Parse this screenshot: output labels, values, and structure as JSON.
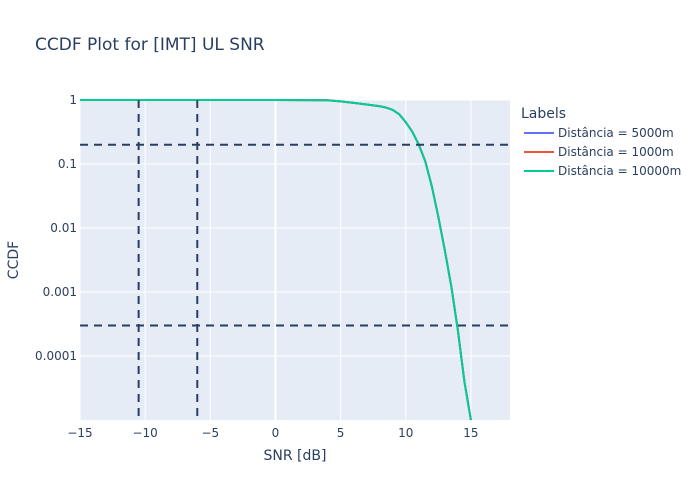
{
  "chart_data": {
    "type": "line",
    "title": "CCDF Plot for [IMT] UL SNR",
    "xlabel": "SNR [dB]",
    "ylabel": "CCDF",
    "xlim": [
      -15,
      18
    ],
    "ylim_log10": [
      -5,
      0
    ],
    "yscale": "log",
    "grid": true,
    "x_ticks": [
      -15,
      -10,
      -5,
      0,
      5,
      10,
      15
    ],
    "x_tick_labels": [
      "−15",
      "−10",
      "−5",
      "0",
      "5",
      "10",
      "15"
    ],
    "y_ticks": [
      1,
      0.1,
      0.01,
      0.001,
      0.0001
    ],
    "y_tick_labels": [
      "1",
      "0.1",
      "0.01",
      "0.001",
      "0.0001"
    ],
    "legend": {
      "title": "Labels",
      "position": "right"
    },
    "series": [
      {
        "name": "Distância = 5000m",
        "color": "#636efa",
        "x": [
          -15,
          -5,
          0,
          4,
          5,
          6,
          7,
          8,
          8.5,
          9,
          9.5,
          10,
          10.5,
          11,
          11.5,
          12,
          12.5,
          13,
          13.5,
          14,
          14.5,
          15
        ],
        "y": [
          1,
          1,
          0.999,
          0.99,
          0.95,
          0.9,
          0.85,
          0.8,
          0.76,
          0.7,
          0.6,
          0.45,
          0.32,
          0.2,
          0.11,
          0.045,
          0.015,
          0.0045,
          0.0012,
          0.00025,
          4e-05,
          1e-05
        ]
      },
      {
        "name": "Distância = 1000m",
        "color": "#ef553b",
        "x": [
          -15,
          -5,
          0,
          4,
          5,
          6,
          7,
          8,
          8.5,
          9,
          9.5,
          10,
          10.5,
          11,
          11.5,
          12,
          12.5,
          13,
          13.5,
          14,
          14.5,
          15
        ],
        "y": [
          1,
          1,
          0.999,
          0.99,
          0.95,
          0.9,
          0.85,
          0.8,
          0.76,
          0.7,
          0.6,
          0.45,
          0.32,
          0.2,
          0.11,
          0.045,
          0.015,
          0.0045,
          0.0012,
          0.00025,
          4e-05,
          1e-05
        ]
      },
      {
        "name": "Distância = 10000m",
        "color": "#00cc96",
        "x": [
          -15,
          -5,
          0,
          4,
          5,
          6,
          7,
          8,
          8.5,
          9,
          9.5,
          10,
          10.5,
          11,
          11.5,
          12,
          12.5,
          13,
          13.5,
          14,
          14.5,
          15
        ],
        "y": [
          1,
          1,
          0.999,
          0.99,
          0.95,
          0.9,
          0.85,
          0.8,
          0.76,
          0.7,
          0.6,
          0.45,
          0.32,
          0.2,
          0.11,
          0.045,
          0.015,
          0.0045,
          0.0012,
          0.00025,
          4e-05,
          1e-05
        ]
      }
    ],
    "reference_lines": {
      "color": "#2a3f5f",
      "vertical_x": [
        -10.5,
        -6
      ],
      "horizontal_y": [
        0.2,
        0.0003
      ]
    }
  }
}
